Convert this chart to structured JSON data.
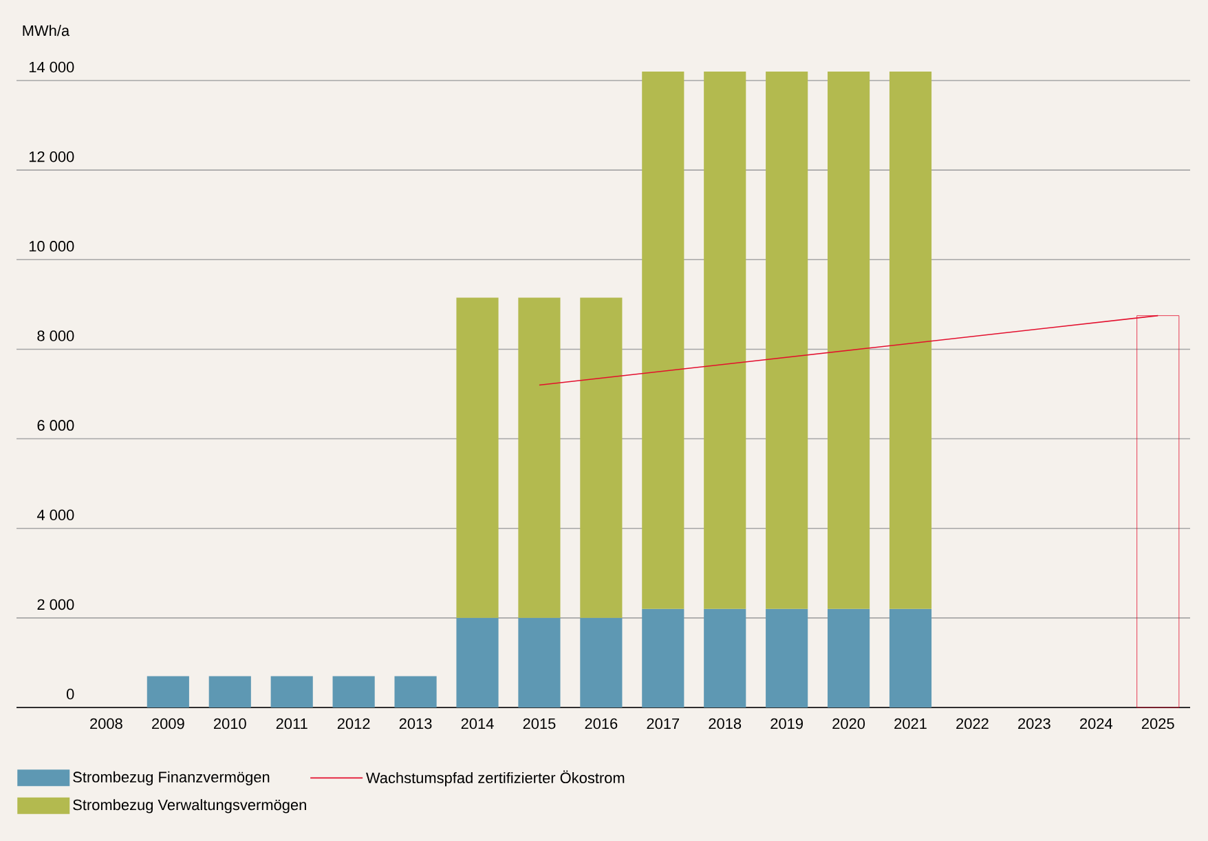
{
  "chart_data": {
    "type": "bar",
    "stacked": true,
    "ylabel": "MWh/a",
    "categories": [
      "2008",
      "2009",
      "2010",
      "2011",
      "2012",
      "2013",
      "2014",
      "2015",
      "2016",
      "2017",
      "2018",
      "2019",
      "2020",
      "2021",
      "2022",
      "2023",
      "2024",
      "2025"
    ],
    "series": [
      {
        "name": "Strombezug Finanzvermögen",
        "color": "#5e98b3",
        "values": [
          null,
          700,
          700,
          700,
          700,
          700,
          2000,
          2000,
          2000,
          2200,
          2200,
          2200,
          2200,
          2200,
          null,
          null,
          null,
          null
        ]
      },
      {
        "name": "Strombezug Verwaltungsvermögen",
        "color": "#b3ba4f",
        "values": [
          null,
          null,
          null,
          null,
          null,
          null,
          7150,
          7150,
          7150,
          12000,
          12000,
          12000,
          12000,
          12000,
          null,
          null,
          null,
          null
        ]
      },
      {
        "color": "#e30f2d",
        "values": [
          null,
          null,
          null,
          null,
          null,
          null,
          null,
          null,
          null,
          null,
          null,
          null,
          null,
          null,
          null,
          null,
          null,
          8750
        ]
      },
      {
        "name": "Wachstumspfad zertifizierter Ökostrom",
        "type": "line",
        "color": "#e30f2d",
        "values": [
          null,
          null,
          null,
          null,
          null,
          null,
          null,
          7200,
          null,
          null,
          null,
          null,
          null,
          null,
          null,
          null,
          null,
          8750
        ]
      }
    ],
    "ylim": [
      0,
      14200
    ],
    "yticks": [
      {
        "value": 0,
        "label": "0"
      },
      {
        "value": 2000,
        "label": "2 000"
      },
      {
        "value": 4000,
        "label": "4 000"
      },
      {
        "value": 6000,
        "label": "6 000"
      },
      {
        "value": 8000,
        "label": "8 000"
      },
      {
        "value": 10000,
        "label": "10 000"
      },
      {
        "value": 12000,
        "label": "12 000"
      },
      {
        "value": 14000,
        "label": "14 000"
      }
    ],
    "grid": "y",
    "legend": "bottom"
  }
}
